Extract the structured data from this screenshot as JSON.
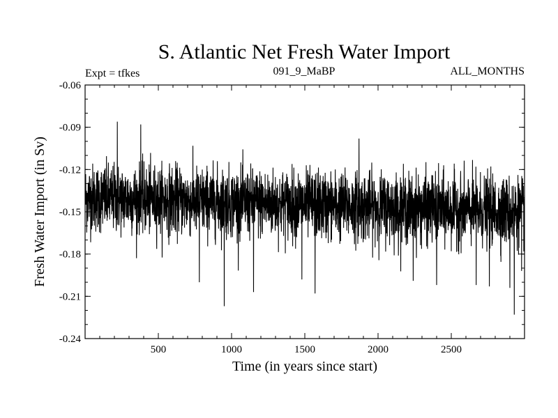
{
  "chart_data": {
    "type": "line",
    "title": "S. Atlantic Net Fresh Water Import",
    "subtitle_left": "Expt = tfkes",
    "subtitle_center": "091_9_MaBP",
    "subtitle_right": "ALL_MONTHS",
    "xlabel": "Time (in years since start)",
    "ylabel": "Fresh Water Import (in Sv)",
    "xlim": [
      0,
      3000
    ],
    "ylim": [
      -0.24,
      -0.06
    ],
    "x_ticks": [
      500,
      1000,
      1500,
      2000,
      2500
    ],
    "x_tick_labels": [
      "500",
      "1000",
      "1500",
      "2000",
      "2500"
    ],
    "y_ticks": [
      -0.06,
      -0.09,
      -0.12,
      -0.15,
      -0.18,
      -0.21,
      -0.24
    ],
    "y_tick_labels": [
      "-0.06",
      "-0.09",
      "-0.12",
      "-0.15",
      "-0.18",
      "-0.21",
      "-0.24"
    ],
    "grid": false,
    "series": [
      {
        "color": "#000000",
        "description_values": {
          "n_points": 3000,
          "x_start": 1,
          "x_end": 3000,
          "mean_early": -0.14,
          "mean_late": -0.15,
          "std": 0.012
        },
        "extremes": [
          {
            "x": 220,
            "y": -0.086
          },
          {
            "x": 380,
            "y": -0.088
          },
          {
            "x": 780,
            "y": -0.2
          },
          {
            "x": 950,
            "y": -0.217
          },
          {
            "x": 1150,
            "y": -0.207
          },
          {
            "x": 1480,
            "y": -0.198
          },
          {
            "x": 1570,
            "y": -0.208
          },
          {
            "x": 1870,
            "y": -0.098
          },
          {
            "x": 2240,
            "y": -0.199
          },
          {
            "x": 2400,
            "y": -0.202
          },
          {
            "x": 2670,
            "y": -0.202
          },
          {
            "x": 2760,
            "y": -0.203
          },
          {
            "x": 2900,
            "y": -0.204
          },
          {
            "x": 2930,
            "y": -0.223
          },
          {
            "x": 2980,
            "y": -0.192
          }
        ]
      }
    ]
  }
}
